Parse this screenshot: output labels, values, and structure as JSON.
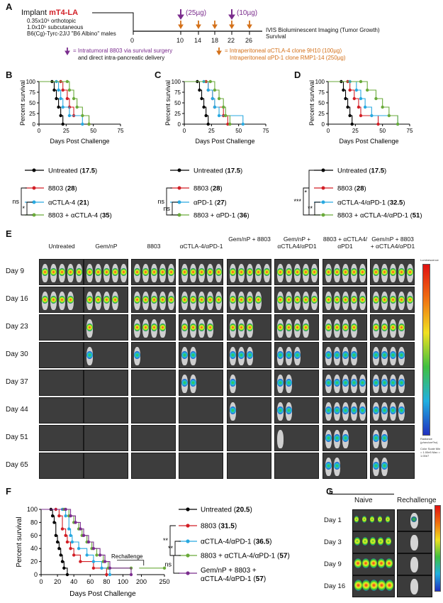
{
  "panels": {
    "A": "A",
    "B": "B",
    "C": "C",
    "D": "D",
    "E": "E",
    "F": "F",
    "G": "G"
  },
  "panel_a": {
    "implant_prefix": "Implant ",
    "implant_strain": "mT4-LA",
    "line1": "0.35x10⁶ orthotopic",
    "line2": "1.0x10⁵ subcutaneous",
    "line3": "B6(Cg)-Tyrc-2J/J \"B6 Albino\" males",
    "ticks": [
      "0",
      "10",
      "14",
      "18",
      "22",
      "26"
    ],
    "dose1": "(25µg)",
    "dose2": "(10µg)",
    "ivis1": "IVIS Bioluminescent Imaging (Tumor Growth)",
    "ivis2": "Survival",
    "legend_purple_1": "= Intratumoral 8803 via survival surgery",
    "legend_purple_2": "and direct intra-pancreatic delivery",
    "legend_orange_1": "= Intraperitoneal αCTLA-4 clone 9H10 (100µg)",
    "legend_orange_2": "Intraperitoneal αPD-1 clone RMP1-14 (250µg)"
  },
  "colors": {
    "untreated": "#000000",
    "c8803": "#d21f26",
    "blue": "#29a9e0",
    "green": "#6aaa3a",
    "purple": "#7b2d8e",
    "orange": "#d4711a"
  },
  "survival_common": {
    "ylabel": "Percent survival",
    "xlabel": "Days Post Challenge",
    "yticks": [
      "0",
      "25",
      "50",
      "75",
      "100"
    ],
    "xticks": [
      "0",
      "25",
      "50",
      "75"
    ]
  },
  "panel_b": {
    "legend": [
      {
        "name": "Untreated",
        "median": "17.5"
      },
      {
        "name": "8803",
        "median": "28"
      },
      {
        "name": "αCTLA-4",
        "median": "21"
      },
      {
        "name": "8803 + αCTLA-4",
        "median": "35"
      }
    ],
    "sig1": "ns",
    "sig2": "*"
  },
  "panel_c": {
    "legend": [
      {
        "name": "Untreated",
        "median": "17.5"
      },
      {
        "name": "8803",
        "median": "28"
      },
      {
        "name": "αPD-1",
        "median": "27"
      },
      {
        "name": "8803 + αPD-1",
        "median": "36"
      }
    ],
    "sig1": "ns",
    "sig2": "ns"
  },
  "panel_d": {
    "legend": [
      {
        "name": "Untreated",
        "median": "17.5"
      },
      {
        "name": "8803",
        "median": "28"
      },
      {
        "name": "αCTLA-4/αPD-1",
        "median": "32.5"
      },
      {
        "name": "8803 + αCTLA-4/αPD-1",
        "median": "51"
      }
    ],
    "sig1": "*",
    "sig2": "***",
    "sig3": "**"
  },
  "panel_e": {
    "columns": [
      "Untreated",
      "Gem/nP",
      "8803",
      "αCTLA-4/αPD-1",
      "Gem/nP + 8803",
      "Gem/nP + αCTLA4/αPD1",
      "8803 + αCTLA4/αPD1",
      "Gem/nP + 8803 + αCTLA4/αPD1"
    ],
    "rows": [
      "Day 9",
      "Day 16",
      "Day 23",
      "Day 30",
      "Day 37",
      "Day 44",
      "Day 51",
      "Day 65"
    ],
    "scale_title": "Luminescence",
    "scale_unit": "Radiance (p/sec/cm²/sr)",
    "scale_note": "Color Scale Min = 1.00e5 Max = 1.00e7"
  },
  "panel_f": {
    "ylabel": "Percent survival",
    "xlabel": "Days Post Challenge",
    "yticks": [
      "0",
      "20",
      "40",
      "60",
      "80",
      "100"
    ],
    "xticks": [
      "0",
      "20",
      "40",
      "60",
      "80",
      "100",
      "200",
      "250"
    ],
    "rechallenge": "Rechallenge",
    "legend": [
      {
        "name": "Untreated",
        "median": "20.5"
      },
      {
        "name": "8803",
        "median": "31.5"
      },
      {
        "name": "αCTLA-4/αPD-1",
        "median": "36.5"
      },
      {
        "name": "8803 + αCTLA-4/αPD-1",
        "median": "57"
      },
      {
        "name": "Gem/nP + 8803 + αCTLA-4/αPD-1",
        "median": "57"
      }
    ],
    "sig1": "**",
    "sig2": "**",
    "sig3": "ns"
  },
  "panel_g": {
    "col1": "Naive",
    "col2": "Rechallenge",
    "rows": [
      "Day 1",
      "Day 3",
      "Day 9",
      "Day 16"
    ]
  }
}
